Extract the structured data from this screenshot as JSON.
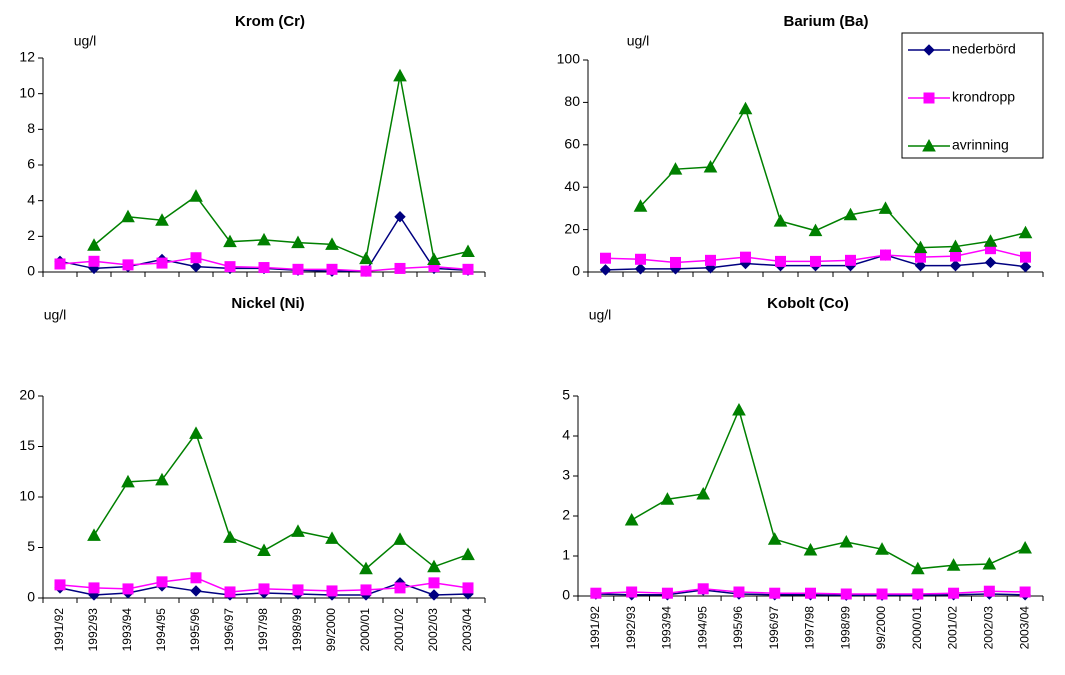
{
  "chart_data": [
    {
      "type": "line",
      "title": "Krom (Cr)",
      "ylabel": "ug/l",
      "categories": [
        null,
        null,
        null,
        null,
        null,
        null,
        null,
        null,
        null,
        null,
        null,
        null,
        null
      ],
      "ylim": [
        0,
        12
      ],
      "yticks": [
        0,
        2,
        4,
        6,
        8,
        10,
        12
      ],
      "series": [
        {
          "color": "#000080",
          "marker": "diamond",
          "values": [
            0.6,
            0.2,
            0.3,
            0.7,
            0.3,
            0.2,
            0.2,
            0.1,
            0.05,
            0.05,
            3.1,
            0.2,
            0.1
          ]
        },
        {
          "color": "#ff00ff",
          "marker": "square",
          "values": [
            0.45,
            0.6,
            0.4,
            0.5,
            0.8,
            0.3,
            0.25,
            0.15,
            0.15,
            0.05,
            0.2,
            0.3,
            0.15
          ]
        },
        {
          "color": "#008000",
          "marker": "triangle",
          "values": [
            null,
            1.5,
            3.1,
            2.9,
            4.25,
            1.7,
            1.8,
            1.65,
            1.55,
            0.75,
            11.0,
            0.7,
            1.15
          ]
        }
      ]
    },
    {
      "type": "line",
      "title": "Barium (Ba)",
      "ylabel": "ug/l",
      "legend": "upper right",
      "categories": [
        null,
        null,
        null,
        null,
        null,
        null,
        null,
        null,
        null,
        null,
        null,
        null,
        null
      ],
      "ylim": [
        0,
        100
      ],
      "yticks": [
        0,
        20,
        40,
        60,
        80,
        100
      ],
      "series": [
        {
          "name": "nederbörd",
          "color": "#000080",
          "marker": "diamond",
          "values": [
            1,
            1.5,
            1.5,
            2,
            4,
            3,
            3,
            3,
            8,
            3,
            3,
            4.5,
            2.5
          ]
        },
        {
          "name": "krondropp",
          "color": "#ff00ff",
          "marker": "square",
          "values": [
            6.5,
            6,
            4.5,
            5.5,
            7,
            5,
            5,
            5.5,
            8,
            7,
            7.5,
            11,
            7
          ]
        },
        {
          "name": "avrinning",
          "color": "#008000",
          "marker": "triangle",
          "values": [
            null,
            31,
            48.5,
            49.5,
            77,
            24,
            19.5,
            27,
            30,
            11.5,
            12,
            14.5,
            18.5
          ]
        }
      ]
    },
    {
      "type": "line",
      "title": "Nickel (Ni)",
      "ylabel": "ug/l",
      "categories": [
        "1991/92",
        "1992/93",
        "1993/94",
        "1994/95",
        "1995/96",
        "1996/97",
        "1997/98",
        "1998/99",
        "99/2000",
        "2000/01",
        "2001/02",
        "2002/03",
        "2003/04"
      ],
      "ylim": [
        0,
        20
      ],
      "yticks": [
        0,
        5,
        10,
        15,
        20
      ],
      "series": [
        {
          "color": "#000080",
          "marker": "diamond",
          "values": [
            1,
            0.3,
            0.5,
            1.2,
            0.7,
            0.3,
            0.5,
            0.4,
            0.3,
            0.3,
            1.5,
            0.3,
            0.4
          ]
        },
        {
          "color": "#ff00ff",
          "marker": "square",
          "values": [
            1.3,
            1.0,
            0.9,
            1.6,
            2.0,
            0.6,
            0.9,
            0.8,
            0.7,
            0.8,
            1.0,
            1.5,
            1.0
          ]
        },
        {
          "color": "#008000",
          "marker": "triangle",
          "values": [
            null,
            6.2,
            11.5,
            11.7,
            16.3,
            6.0,
            4.7,
            6.6,
            5.9,
            2.9,
            5.8,
            3.1,
            4.3
          ]
        }
      ]
    },
    {
      "type": "line",
      "title": "Kobolt (Co)",
      "ylabel": "ug/l",
      "categories": [
        "1991/92",
        "1992/93",
        "1993/94",
        "1994/95",
        "1995/96",
        "1996/97",
        "1997/98",
        "1998/99",
        "99/2000",
        "2000/01",
        "2001/02",
        "2002/03",
        "2003/04"
      ],
      "ylim": [
        0,
        5
      ],
      "yticks": [
        0,
        1,
        2,
        3,
        4,
        5
      ],
      "series": [
        {
          "color": "#000080",
          "marker": "diamond",
          "values": [
            0.05,
            0.03,
            0.03,
            0.15,
            0.05,
            0.03,
            0.03,
            0.02,
            0.02,
            0.02,
            0.03,
            0.05,
            0.03
          ]
        },
        {
          "color": "#ff00ff",
          "marker": "square",
          "values": [
            0.07,
            0.1,
            0.07,
            0.18,
            0.1,
            0.07,
            0.07,
            0.05,
            0.05,
            0.05,
            0.07,
            0.12,
            0.1
          ]
        },
        {
          "color": "#008000",
          "marker": "triangle",
          "values": [
            null,
            1.9,
            2.42,
            2.55,
            4.65,
            1.42,
            1.15,
            1.35,
            1.17,
            0.68,
            0.77,
            0.8,
            1.2
          ]
        }
      ]
    }
  ]
}
